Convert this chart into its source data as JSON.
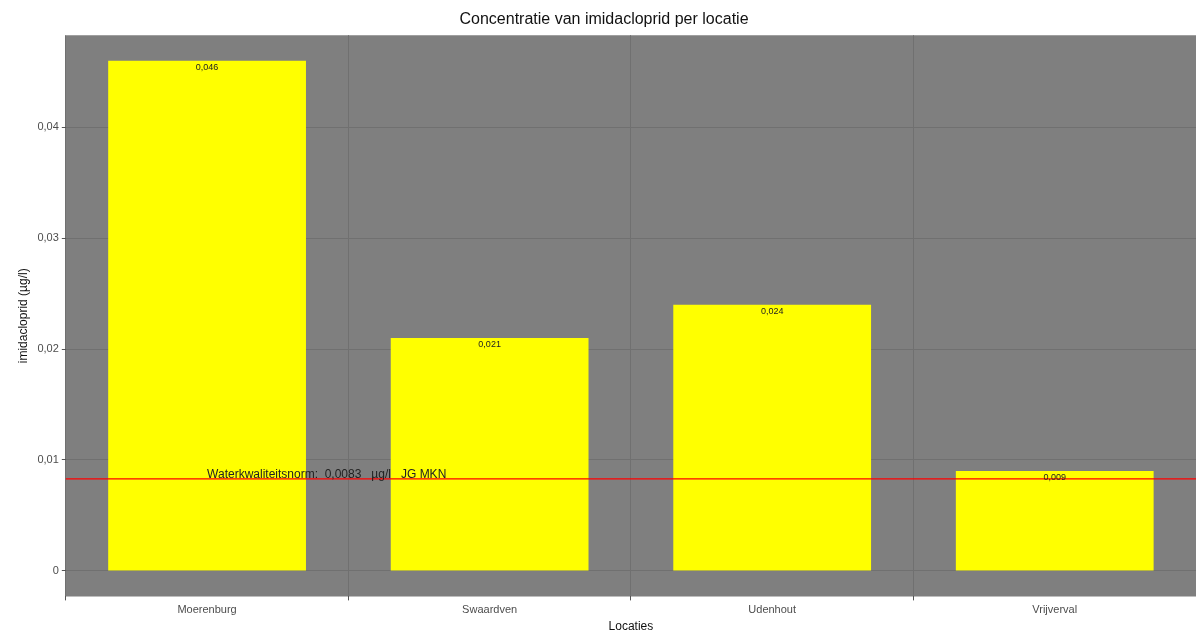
{
  "chart_data": {
    "type": "bar",
    "title": "Concentratie van imidacloprid per locatie",
    "xlabel": "Locaties",
    "ylabel": "imidacloprid (µg/l)",
    "categories": [
      "Moerenburg",
      "Swaardven",
      "Udenhout",
      "Vrijverval"
    ],
    "values": [
      0.046,
      0.021,
      0.024,
      0.009
    ],
    "color": "#ffff00",
    "value_labels": [
      "0,046",
      "0,021",
      "0,024",
      "0,009"
    ],
    "ylim": [
      -0.0023,
      0.0483
    ],
    "yticks": [
      {
        "value": 0,
        "label": "0"
      },
      {
        "value": 0.01,
        "label": "0,01"
      },
      {
        "value": 0.02,
        "label": "0,02"
      },
      {
        "value": 0.03,
        "label": "0,03"
      },
      {
        "value": 0.04,
        "label": "0,04"
      }
    ],
    "ref_lines": [
      {
        "axis": "y",
        "value": 0.0083,
        "label": "Waterkwaliteitsnorm:  0,0083   µg/l   JG MKN",
        "color": "#ff0000"
      }
    ],
    "grid": true,
    "legend": false
  }
}
